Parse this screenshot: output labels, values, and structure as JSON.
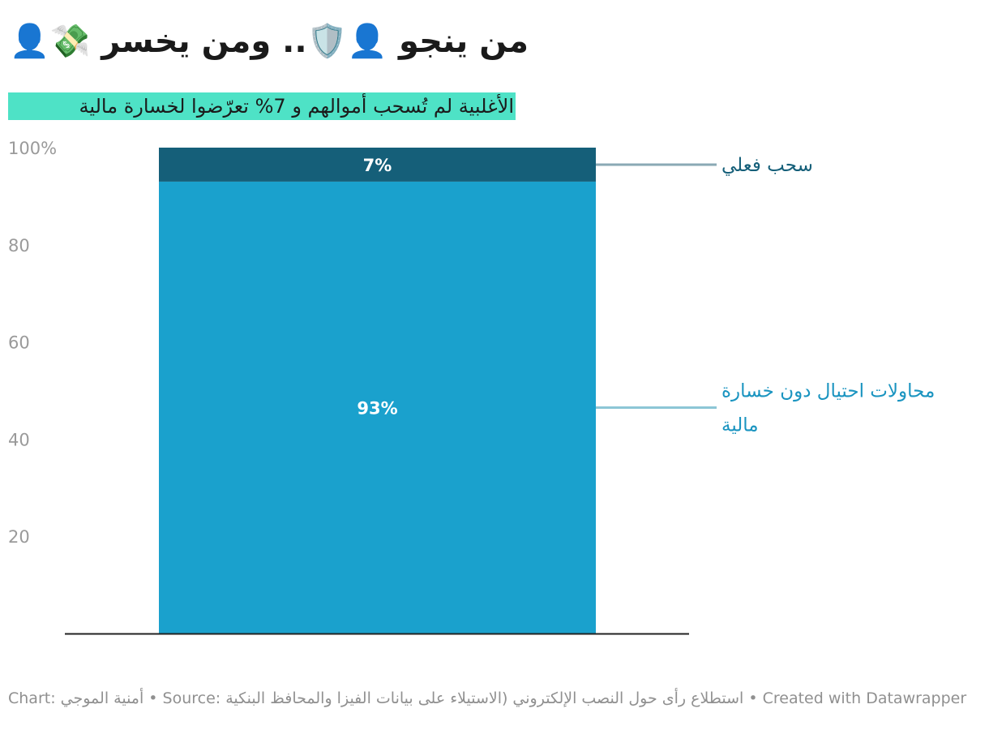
{
  "title": "من ينجو 👤🛡️.. ومن يخسر 💸👤",
  "subtitle": "الأغلبية لم تُسحب أموالهم و 7% تعرّضوا لخسارة مالية",
  "footer": "Chart: أمنية الموجي • Source: استطلاع رأى حول النصب الإلكتروني (الاستيلاء على بيانات الفيزا والمحافظ البنكية • Created with Datawrapper",
  "colors": {
    "accent_highlight": "#4ee2c6",
    "series_loss": "#155f79",
    "series_no_loss": "#1aa1cd",
    "label_loss": "#155f79",
    "label_no_loss": "#1a94c0",
    "connector_loss": "#8aa9b4",
    "connector_no_loss": "#8cc6d6"
  },
  "chart_data": {
    "type": "bar",
    "stacked": true,
    "categories": [
      ""
    ],
    "series": [
      {
        "name": "محاولات احتيال دون خسارة مالية",
        "values": [
          93
        ],
        "data_label": "93%"
      },
      {
        "name": "سحب فعلي",
        "values": [
          7
        ],
        "data_label": "7%"
      }
    ],
    "ylim": [
      0,
      100
    ],
    "y_ticks": [
      "20",
      "40",
      "60",
      "80",
      "100%"
    ],
    "y_tick_values": [
      20,
      40,
      60,
      80,
      100
    ],
    "grid": false,
    "legend": "direct labels on the right",
    "title": "من ينجو 👤🛡️.. ومن يخسر 💸👤",
    "xlabel": "",
    "ylabel": ""
  }
}
